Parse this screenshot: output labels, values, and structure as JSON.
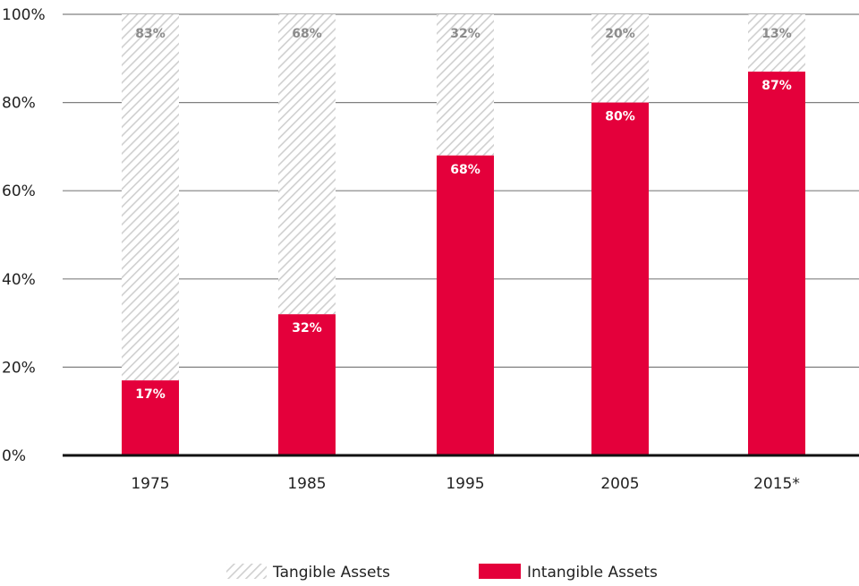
{
  "chart_data": {
    "type": "bar",
    "stacked": true,
    "categories": [
      "1975",
      "1985",
      "1995",
      "2005",
      "2015*"
    ],
    "series": [
      {
        "name": "Intangible Assets",
        "values": [
          17,
          32,
          68,
          80,
          87
        ],
        "labels": [
          "17%",
          "32%",
          "68%",
          "80%",
          "87%"
        ],
        "color": "#e4003b"
      },
      {
        "name": "Tangible Assets",
        "values": [
          83,
          68,
          32,
          20,
          13
        ],
        "labels": [
          "83%",
          "68%",
          "32%",
          "20%",
          "13%"
        ],
        "color": "#d9d9d9",
        "pattern": "diagonal-hatch"
      }
    ],
    "y_ticks": [
      "0%",
      "20%",
      "40%",
      "60%",
      "80%",
      "100%"
    ],
    "ylim": [
      0,
      100
    ],
    "grid": true,
    "legend_position": "bottom",
    "title": "",
    "xlabel": "",
    "ylabel": ""
  },
  "legend": {
    "tangible_label": "Tangible Assets",
    "intangible_label": "Intangible Assets"
  }
}
